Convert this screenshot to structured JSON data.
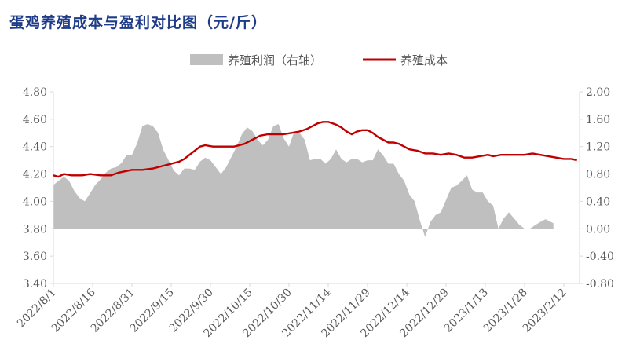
{
  "title": "蛋鸡养殖成本与盈利对比图（元/斤）",
  "legend": [
    {
      "label": "养殖利润（右轴）",
      "color": "#bfbfbf",
      "kind": "area"
    },
    {
      "label": "养殖成本",
      "color": "#c00000",
      "kind": "line"
    }
  ],
  "chart_data": {
    "type": "line",
    "title": "蛋鸡养殖成本与盈利对比图（元/斤）",
    "left_axis": {
      "ticks": [
        "4.80",
        "4.60",
        "4.40",
        "4.20",
        "4.00",
        "3.80",
        "3.60",
        "3.40"
      ],
      "ylim": [
        3.4,
        4.8
      ]
    },
    "right_axis": {
      "ticks": [
        "2.00",
        "1.60",
        "1.20",
        "0.80",
        "0.40",
        "0.00",
        "-0.40",
        "-0.80"
      ],
      "ylim": [
        -0.8,
        2.0
      ]
    },
    "x_ticks": [
      "2022/8/1",
      "2022/8/16",
      "2022/8/31",
      "2022/9/15",
      "2022/9/30",
      "2022/10/15",
      "2022/10/30",
      "2022/11/14",
      "2022/11/29",
      "2022/12/14",
      "2022/12/29",
      "2023/1/13",
      "2023/1/28",
      "2023/2/12"
    ],
    "x_range": [
      "2022-08-01",
      "2023-02-18"
    ],
    "series": [
      {
        "name": "养殖利润（右轴）",
        "axis": "right",
        "style": "area",
        "points": [
          [
            "2022-08-01",
            0.64
          ],
          [
            "2022-08-03",
            0.7
          ],
          [
            "2022-08-05",
            0.76
          ],
          [
            "2022-08-07",
            0.7
          ],
          [
            "2022-08-09",
            0.55
          ],
          [
            "2022-08-11",
            0.45
          ],
          [
            "2022-08-13",
            0.4
          ],
          [
            "2022-08-15",
            0.52
          ],
          [
            "2022-08-17",
            0.64
          ],
          [
            "2022-08-19",
            0.72
          ],
          [
            "2022-08-21",
            0.82
          ],
          [
            "2022-08-23",
            0.88
          ],
          [
            "2022-08-25",
            0.9
          ],
          [
            "2022-08-27",
            0.96
          ],
          [
            "2022-08-29",
            1.08
          ],
          [
            "2022-08-31",
            1.08
          ],
          [
            "2022-09-02",
            1.25
          ],
          [
            "2022-09-04",
            1.5
          ],
          [
            "2022-09-06",
            1.53
          ],
          [
            "2022-09-08",
            1.5
          ],
          [
            "2022-09-10",
            1.4
          ],
          [
            "2022-09-12",
            1.15
          ],
          [
            "2022-09-14",
            1.0
          ],
          [
            "2022-09-16",
            0.85
          ],
          [
            "2022-09-18",
            0.78
          ],
          [
            "2022-09-20",
            0.88
          ],
          [
            "2022-09-22",
            0.88
          ],
          [
            "2022-09-24",
            0.86
          ],
          [
            "2022-09-26",
            0.98
          ],
          [
            "2022-09-28",
            1.04
          ],
          [
            "2022-09-30",
            1.0
          ],
          [
            "2022-10-02",
            0.9
          ],
          [
            "2022-10-04",
            0.8
          ],
          [
            "2022-10-06",
            0.9
          ],
          [
            "2022-10-08",
            1.05
          ],
          [
            "2022-10-10",
            1.2
          ],
          [
            "2022-10-12",
            1.38
          ],
          [
            "2022-10-14",
            1.48
          ],
          [
            "2022-10-16",
            1.43
          ],
          [
            "2022-10-18",
            1.3
          ],
          [
            "2022-10-20",
            1.22
          ],
          [
            "2022-10-22",
            1.3
          ],
          [
            "2022-10-24",
            1.5
          ],
          [
            "2022-10-26",
            1.53
          ],
          [
            "2022-10-28",
            1.32
          ],
          [
            "2022-10-30",
            1.2
          ],
          [
            "2022-11-01",
            1.42
          ],
          [
            "2022-11-03",
            1.4
          ],
          [
            "2022-11-05",
            1.3
          ],
          [
            "2022-11-07",
            1.0
          ],
          [
            "2022-11-09",
            1.02
          ],
          [
            "2022-11-11",
            1.02
          ],
          [
            "2022-11-13",
            0.95
          ],
          [
            "2022-11-15",
            1.02
          ],
          [
            "2022-11-17",
            1.16
          ],
          [
            "2022-11-19",
            1.02
          ],
          [
            "2022-11-21",
            0.97
          ],
          [
            "2022-11-23",
            1.02
          ],
          [
            "2022-11-25",
            1.02
          ],
          [
            "2022-11-27",
            0.97
          ],
          [
            "2022-11-29",
            1.0
          ],
          [
            "2022-12-01",
            1.0
          ],
          [
            "2022-12-03",
            1.16
          ],
          [
            "2022-12-05",
            1.07
          ],
          [
            "2022-12-07",
            0.95
          ],
          [
            "2022-12-09",
            0.95
          ],
          [
            "2022-12-11",
            0.8
          ],
          [
            "2022-12-13",
            0.7
          ],
          [
            "2022-12-15",
            0.5
          ],
          [
            "2022-12-17",
            0.4
          ],
          [
            "2022-12-19",
            0.12
          ],
          [
            "2022-12-21",
            -0.12
          ],
          [
            "2022-12-23",
            0.1
          ],
          [
            "2022-12-25",
            0.2
          ],
          [
            "2022-12-27",
            0.24
          ],
          [
            "2022-12-29",
            0.42
          ],
          [
            "2022-12-31",
            0.6
          ],
          [
            "2023-01-02",
            0.63
          ],
          [
            "2023-01-04",
            0.7
          ],
          [
            "2023-01-06",
            0.78
          ],
          [
            "2023-01-08",
            0.57
          ],
          [
            "2023-01-10",
            0.53
          ],
          [
            "2023-01-12",
            0.53
          ],
          [
            "2023-01-14",
            0.4
          ],
          [
            "2023-01-16",
            0.34
          ],
          [
            "2023-01-18",
            0.0
          ],
          [
            "2023-01-20",
            0.15
          ],
          [
            "2023-01-22",
            0.24
          ],
          [
            "2023-01-24",
            0.15
          ],
          [
            "2023-01-26",
            0.06
          ],
          [
            "2023-01-28",
            0.0
          ],
          [
            "2023-01-30",
            0.0
          ],
          [
            "2023-02-01",
            0.05
          ],
          [
            "2023-02-03",
            0.1
          ],
          [
            "2023-02-05",
            0.14
          ],
          [
            "2023-02-07",
            0.1
          ],
          [
            "2023-02-08",
            0.08
          ]
        ]
      },
      {
        "name": "养殖成本",
        "axis": "left",
        "style": "line",
        "color": "#c00000",
        "points": [
          [
            "2022-08-01",
            4.19
          ],
          [
            "2022-08-03",
            4.18
          ],
          [
            "2022-08-05",
            4.2
          ],
          [
            "2022-08-08",
            4.19
          ],
          [
            "2022-08-12",
            4.19
          ],
          [
            "2022-08-15",
            4.2
          ],
          [
            "2022-08-19",
            4.19
          ],
          [
            "2022-08-23",
            4.19
          ],
          [
            "2022-08-26",
            4.21
          ],
          [
            "2022-08-31",
            4.23
          ],
          [
            "2022-09-04",
            4.23
          ],
          [
            "2022-09-08",
            4.24
          ],
          [
            "2022-09-12",
            4.26
          ],
          [
            "2022-09-14",
            4.27
          ],
          [
            "2022-09-18",
            4.29
          ],
          [
            "2022-09-20",
            4.31
          ],
          [
            "2022-09-22",
            4.34
          ],
          [
            "2022-09-24",
            4.37
          ],
          [
            "2022-09-26",
            4.4
          ],
          [
            "2022-09-28",
            4.41
          ],
          [
            "2022-10-01",
            4.4
          ],
          [
            "2022-10-05",
            4.4
          ],
          [
            "2022-10-09",
            4.4
          ],
          [
            "2022-10-13",
            4.42
          ],
          [
            "2022-10-16",
            4.45
          ],
          [
            "2022-10-19",
            4.48
          ],
          [
            "2022-10-22",
            4.49
          ],
          [
            "2022-10-25",
            4.49
          ],
          [
            "2022-10-28",
            4.49
          ],
          [
            "2022-10-31",
            4.5
          ],
          [
            "2022-11-03",
            4.51
          ],
          [
            "2022-11-06",
            4.53
          ],
          [
            "2022-11-08",
            4.55
          ],
          [
            "2022-11-10",
            4.57
          ],
          [
            "2022-11-12",
            4.58
          ],
          [
            "2022-11-14",
            4.58
          ],
          [
            "2022-11-17",
            4.56
          ],
          [
            "2022-11-19",
            4.54
          ],
          [
            "2022-11-21",
            4.51
          ],
          [
            "2022-11-23",
            4.49
          ],
          [
            "2022-11-25",
            4.51
          ],
          [
            "2022-11-27",
            4.52
          ],
          [
            "2022-11-29",
            4.52
          ],
          [
            "2022-12-01",
            4.5
          ],
          [
            "2022-12-03",
            4.47
          ],
          [
            "2022-12-05",
            4.45
          ],
          [
            "2022-12-07",
            4.43
          ],
          [
            "2022-12-09",
            4.43
          ],
          [
            "2022-12-11",
            4.42
          ],
          [
            "2022-12-13",
            4.4
          ],
          [
            "2022-12-15",
            4.38
          ],
          [
            "2022-12-18",
            4.37
          ],
          [
            "2022-12-21",
            4.35
          ],
          [
            "2022-12-24",
            4.35
          ],
          [
            "2022-12-27",
            4.34
          ],
          [
            "2022-12-30",
            4.35
          ],
          [
            "2023-01-02",
            4.34
          ],
          [
            "2023-01-05",
            4.32
          ],
          [
            "2023-01-08",
            4.32
          ],
          [
            "2023-01-11",
            4.33
          ],
          [
            "2023-01-14",
            4.34
          ],
          [
            "2023-01-16",
            4.33
          ],
          [
            "2023-01-19",
            4.34
          ],
          [
            "2023-01-22",
            4.34
          ],
          [
            "2023-01-25",
            4.34
          ],
          [
            "2023-01-28",
            4.34
          ],
          [
            "2023-01-31",
            4.35
          ],
          [
            "2023-02-03",
            4.34
          ],
          [
            "2023-02-06",
            4.33
          ],
          [
            "2023-02-09",
            4.32
          ],
          [
            "2023-02-12",
            4.31
          ],
          [
            "2023-02-15",
            4.31
          ],
          [
            "2023-02-17",
            4.3
          ]
        ]
      }
    ]
  }
}
